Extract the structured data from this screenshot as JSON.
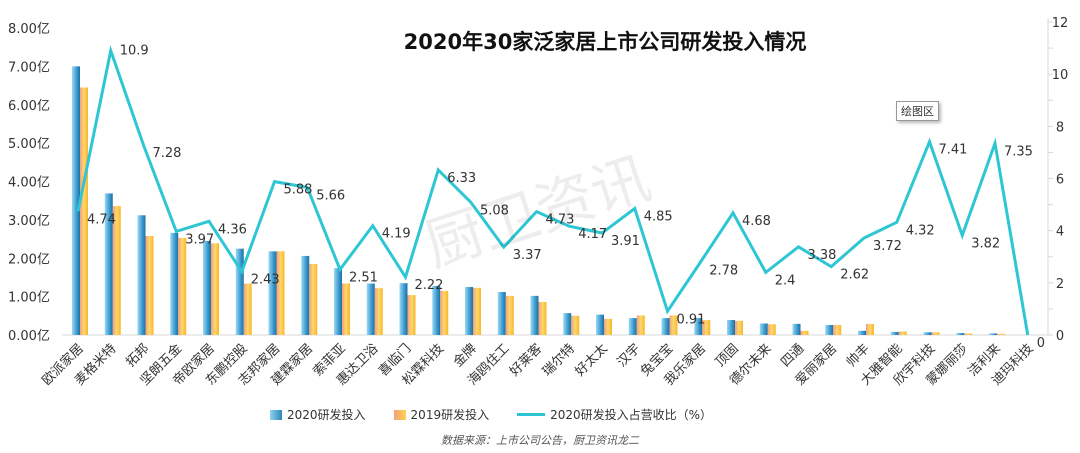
{
  "chart_data": {
    "type": "bar+line",
    "title": "2020年30家泛家居上市公司研发投入情况",
    "categories": [
      "欧派家居",
      "麦格米特",
      "拓邦",
      "坚朗五金",
      "帝欧家居",
      "东鹏控股",
      "志邦家居",
      "建霖家居",
      "索菲亚",
      "惠达卫浴",
      "喜临门",
      "松霖科技",
      "金牌",
      "海鸥住工",
      "好莱客",
      "瑞尔特",
      "好太太",
      "汉宇",
      "兔宝宝",
      "我乐家居",
      "顶固",
      "德尔未来",
      "四通",
      "爱丽家居",
      "帅丰",
      "大雅智能",
      "欣宇科技",
      "蒙娜丽莎",
      "洁利来",
      "迪玛科技"
    ],
    "series": [
      {
        "name": "2020研发投入",
        "type": "bar",
        "axis": "left",
        "color": "#4aa8d8",
        "values": [
          7.0,
          3.69,
          3.12,
          2.66,
          2.45,
          2.25,
          2.18,
          2.06,
          1.74,
          1.34,
          1.35,
          1.28,
          1.25,
          1.12,
          1.02,
          0.57,
          0.53,
          0.44,
          0.44,
          0.44,
          0.39,
          0.3,
          0.29,
          0.26,
          0.11,
          0.08,
          0.07,
          0.05,
          0.04,
          0
        ]
      },
      {
        "name": "2019研发投入",
        "type": "bar",
        "axis": "left",
        "color": "#f9c13a",
        "values": [
          6.45,
          3.36,
          2.58,
          2.53,
          2.39,
          1.34,
          2.18,
          1.85,
          1.34,
          1.22,
          1.04,
          1.15,
          1.23,
          1.02,
          0.86,
          0.5,
          0.42,
          0.51,
          0.51,
          0.39,
          0.37,
          0.28,
          0.11,
          0.26,
          0.29,
          0.09,
          0.07,
          0.04,
          0.03,
          0
        ]
      },
      {
        "name": "2020研发投入占营收比（%）",
        "type": "line",
        "axis": "right",
        "color": "#2ec6d3",
        "values": [
          4.74,
          10.9,
          7.28,
          3.97,
          4.36,
          2.43,
          5.88,
          5.66,
          2.51,
          4.19,
          2.22,
          6.33,
          5.08,
          3.37,
          4.73,
          4.17,
          3.91,
          4.85,
          0.91,
          2.78,
          4.68,
          2.4,
          3.38,
          2.62,
          3.72,
          4.32,
          7.41,
          3.82,
          7.35,
          0
        ]
      }
    ],
    "left_axis": {
      "ylim": [
        0,
        8
      ],
      "ticks": [
        "0.00亿",
        "1.00亿",
        "2.00亿",
        "3.00亿",
        "4.00亿",
        "5.00亿",
        "6.00亿",
        "7.00亿",
        "8.00亿"
      ]
    },
    "right_axis": {
      "ylim": [
        0,
        12
      ],
      "ticks": [
        "0",
        "2",
        "4",
        "6",
        "8",
        "10",
        "12"
      ]
    },
    "grid": false,
    "legend_position": "bottom"
  },
  "legend": [
    "2020研发投入",
    "2019研发投入",
    "2020研发投入占营收比（%）"
  ],
  "source": "数据来源：上市公司公告，厨卫资讯龙二",
  "tooltip": "绘图区",
  "watermark": "厨卫资讯"
}
